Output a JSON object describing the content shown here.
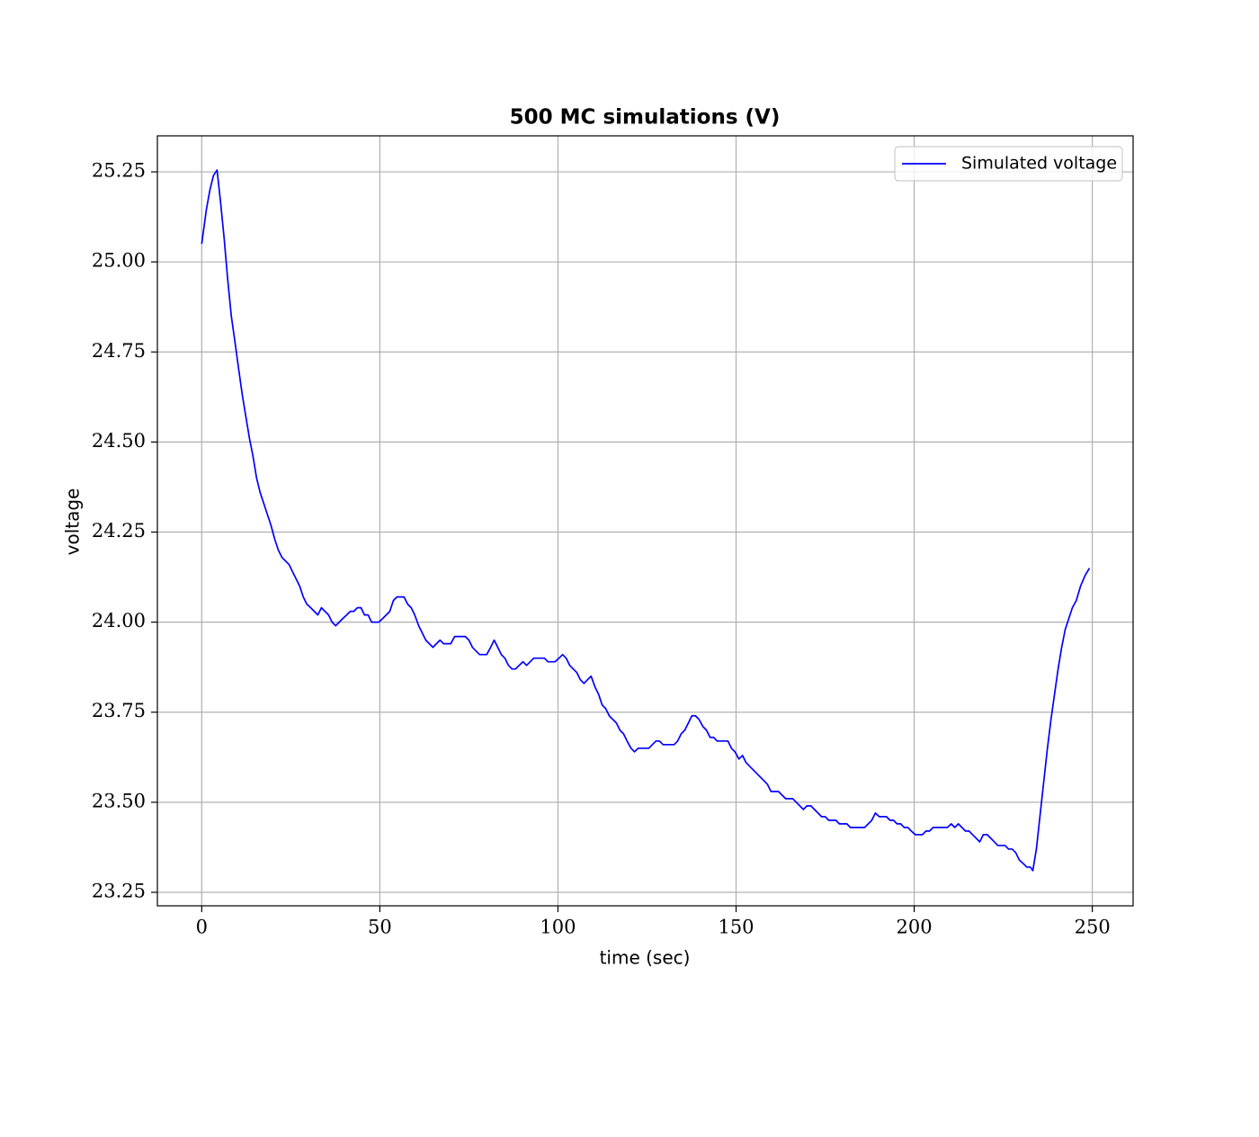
{
  "chart_data": {
    "type": "line",
    "title": "500 MC simulations (V)",
    "x_label": "time (sec)",
    "y_label": "voltage",
    "x": [
      0,
      1.3,
      2.3,
      3.3,
      4.3,
      5.3,
      6.3,
      7.3,
      8.3,
      9.3,
      10.4,
      11.4,
      12.4,
      13.4,
      14.4,
      15.4,
      16.4,
      17.4,
      18.4,
      19.4,
      20.5,
      21.5,
      22.5,
      23.5,
      24.5,
      25.5,
      26.5,
      27.5,
      28.5,
      29.5,
      30.6,
      31.6,
      32.6,
      33.6,
      34.6,
      35.6,
      36.6,
      37.6,
      38.6,
      39.6,
      40.7,
      41.7,
      42.7,
      43.7,
      44.7,
      45.7,
      46.7,
      47.7,
      48.7,
      49.7,
      50.8,
      51.8,
      52.8,
      53.8,
      54.8,
      55.8,
      56.8,
      57.8,
      58.8,
      59.8,
      60.9,
      61.9,
      62.9,
      63.9,
      64.9,
      65.9,
      66.9,
      67.9,
      68.9,
      69.9,
      71.0,
      72.0,
      73.0,
      74.0,
      75.0,
      76.0,
      77.0,
      78.0,
      79.0,
      80.0,
      81.1,
      82.1,
      83.1,
      84.1,
      85.1,
      86.1,
      87.1,
      88.1,
      89.1,
      90.2,
      91.2,
      92.2,
      93.2,
      94.2,
      95.2,
      96.2,
      97.2,
      98.2,
      99.2,
      100.3,
      101.3,
      102.3,
      103.3,
      104.3,
      105.3,
      106.3,
      107.3,
      108.3,
      109.3,
      110.4,
      111.4,
      112.4,
      113.4,
      114.4,
      115.4,
      116.4,
      117.4,
      118.4,
      119.4,
      120.5,
      121.5,
      122.5,
      123.5,
      124.5,
      125.5,
      126.5,
      127.5,
      128.5,
      129.5,
      130.6,
      131.6,
      132.6,
      133.6,
      134.6,
      135.6,
      136.6,
      137.6,
      138.6,
      139.6,
      140.7,
      141.7,
      142.7,
      143.7,
      144.7,
      145.7,
      146.7,
      147.7,
      148.7,
      149.7,
      150.8,
      151.8,
      152.8,
      153.8,
      154.8,
      155.8,
      156.8,
      157.8,
      158.8,
      159.8,
      160.9,
      161.9,
      162.9,
      163.9,
      164.9,
      165.9,
      166.9,
      167.9,
      168.9,
      169.9,
      171.0,
      172.0,
      173.0,
      174.0,
      175.0,
      176.0,
      177.0,
      178.0,
      179.0,
      180.0,
      181.1,
      182.1,
      183.1,
      184.1,
      185.1,
      186.1,
      187.1,
      188.1,
      189.1,
      190.2,
      191.2,
      192.2,
      193.2,
      194.2,
      195.2,
      196.2,
      197.2,
      198.2,
      199.2,
      200.3,
      201.3,
      202.3,
      203.3,
      204.3,
      205.3,
      206.3,
      207.3,
      208.3,
      209.3,
      210.4,
      211.4,
      212.4,
      213.4,
      214.4,
      215.4,
      216.4,
      217.4,
      218.4,
      219.4,
      220.5,
      221.5,
      222.5,
      223.5,
      224.5,
      225.5,
      226.5,
      227.5,
      228.5,
      229.5,
      230.6,
      231.6,
      232.6,
      233.3,
      234.3,
      235.4,
      236.4,
      237.4,
      238.4,
      239.4,
      240.4,
      241.4,
      242.4,
      243.4,
      244.4,
      245.5,
      246.7,
      248.0,
      249.2
    ],
    "series": [
      {
        "name": "Simulated voltage",
        "color": "#0000ff",
        "values": [
          25.05,
          25.145,
          25.2,
          25.24,
          25.255,
          25.165,
          25.065,
          24.95,
          24.85,
          24.78,
          24.7,
          24.63,
          24.57,
          24.51,
          24.46,
          24.4,
          24.36,
          24.33,
          24.3,
          24.27,
          24.23,
          24.2,
          24.18,
          24.17,
          24.16,
          24.14,
          24.12,
          24.1,
          24.07,
          24.05,
          24.04,
          24.03,
          24.02,
          24.04,
          24.03,
          24.02,
          24.0,
          23.99,
          24.0,
          24.01,
          24.02,
          24.03,
          24.03,
          24.04,
          24.04,
          24.02,
          24.02,
          24.0,
          24.0,
          24.0,
          24.01,
          24.02,
          24.03,
          24.06,
          24.07,
          24.07,
          24.07,
          24.05,
          24.04,
          24.02,
          23.99,
          23.97,
          23.95,
          23.94,
          23.93,
          23.94,
          23.95,
          23.94,
          23.94,
          23.94,
          23.96,
          23.96,
          23.96,
          23.96,
          23.95,
          23.93,
          23.92,
          23.91,
          23.91,
          23.91,
          23.93,
          23.95,
          23.93,
          23.91,
          23.9,
          23.88,
          23.87,
          23.87,
          23.88,
          23.89,
          23.88,
          23.89,
          23.9,
          23.9,
          23.9,
          23.9,
          23.89,
          23.89,
          23.89,
          23.9,
          23.91,
          23.9,
          23.88,
          23.87,
          23.86,
          23.84,
          23.83,
          23.84,
          23.85,
          23.82,
          23.8,
          23.77,
          23.76,
          23.74,
          23.73,
          23.72,
          23.7,
          23.69,
          23.67,
          23.65,
          23.64,
          23.65,
          23.65,
          23.65,
          23.65,
          23.66,
          23.67,
          23.67,
          23.66,
          23.66,
          23.66,
          23.66,
          23.67,
          23.69,
          23.7,
          23.72,
          23.74,
          23.74,
          23.73,
          23.71,
          23.7,
          23.68,
          23.68,
          23.67,
          23.67,
          23.67,
          23.67,
          23.65,
          23.64,
          23.62,
          23.63,
          23.61,
          23.6,
          23.59,
          23.58,
          23.57,
          23.56,
          23.55,
          23.53,
          23.53,
          23.53,
          23.52,
          23.51,
          23.51,
          23.51,
          23.5,
          23.49,
          23.48,
          23.49,
          23.49,
          23.48,
          23.47,
          23.46,
          23.46,
          23.45,
          23.45,
          23.45,
          23.44,
          23.44,
          23.44,
          23.43,
          23.43,
          23.43,
          23.43,
          23.43,
          23.44,
          23.45,
          23.47,
          23.46,
          23.46,
          23.46,
          23.45,
          23.45,
          23.44,
          23.44,
          23.43,
          23.43,
          23.42,
          23.41,
          23.41,
          23.41,
          23.42,
          23.42,
          23.43,
          23.43,
          23.43,
          23.43,
          23.43,
          23.44,
          23.43,
          23.44,
          23.43,
          23.42,
          23.42,
          23.41,
          23.4,
          23.39,
          23.41,
          23.41,
          23.4,
          23.39,
          23.38,
          23.38,
          23.38,
          23.37,
          23.37,
          23.36,
          23.34,
          23.33,
          23.32,
          23.32,
          23.31,
          23.37,
          23.47,
          23.56,
          23.65,
          23.73,
          23.8,
          23.87,
          23.93,
          23.98,
          24.01,
          24.04,
          24.06,
          24.1,
          24.13,
          24.15
        ]
      }
    ],
    "xlim": [
      -12.45,
      261.45
    ],
    "xticks": [
      0,
      50,
      100,
      150,
      200,
      250
    ],
    "ylim": [
      23.2125,
      25.35
    ],
    "yticks": [
      23.25,
      {
        "value": 23.5,
        "label": "23.50"
      },
      23.75,
      {
        "value": 24,
        "label": "24.00"
      },
      24.25,
      {
        "value": 24.5,
        "label": "24.50"
      },
      24.75,
      {
        "value": 25,
        "label": "25.00"
      },
      25.25
    ],
    "grid": true,
    "legend": "upper right"
  }
}
